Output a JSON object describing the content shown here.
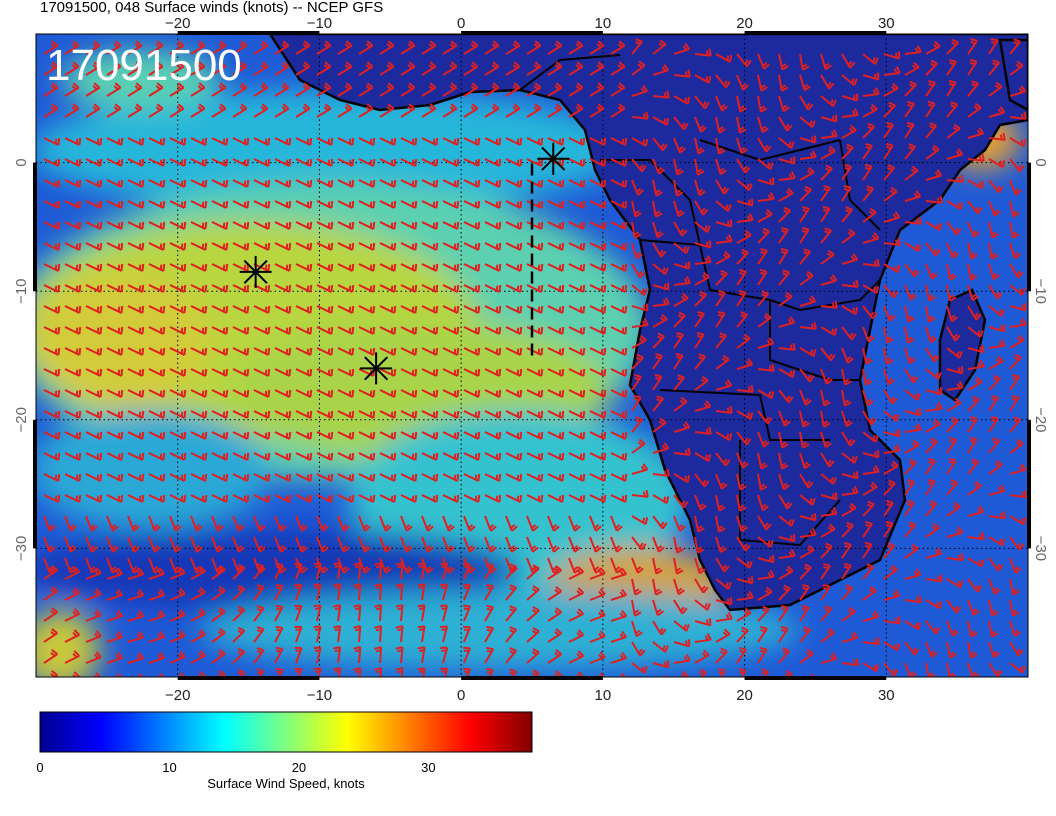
{
  "map": {
    "title": "17091500, 048 Surface winds (knots) -- NCEP GFS",
    "stamp": "17091500",
    "lon_ticks": [
      "−20",
      "−10",
      "0",
      "10",
      "20",
      "30"
    ],
    "lat_ticks": [
      "0",
      "−10",
      "−20",
      "−30"
    ],
    "lon_range": [
      -30,
      40
    ],
    "lat_range": [
      -40,
      10
    ],
    "colors": {
      "ocean_weak": "#1a4fd0",
      "ocean_moderate": "#22b8d8",
      "trade_winds": "#c8d63a",
      "land": "#1c2a9e",
      "barbs": "#e02020",
      "coastline": "#000000",
      "markers": "#000000"
    },
    "storm_markers": [
      {
        "lon": -14.5,
        "lat": -8.5
      },
      {
        "lon": -6,
        "lat": -16
      },
      {
        "lon": 6.5,
        "lat": 0.3
      }
    ],
    "track": {
      "lon": 5,
      "lat_start": -15,
      "lat_end": 0
    }
  },
  "colorbar": {
    "ticks": [
      "0",
      "10",
      "20",
      "30"
    ],
    "tick_values": [
      0,
      10,
      20,
      30
    ],
    "range": [
      0,
      38
    ],
    "label": "Surface Wind Speed, knots",
    "colors": [
      "#00008f",
      "#0000ff",
      "#0080ff",
      "#00ffff",
      "#80ff80",
      "#ffff00",
      "#ff8000",
      "#ff0000",
      "#800000"
    ]
  }
}
